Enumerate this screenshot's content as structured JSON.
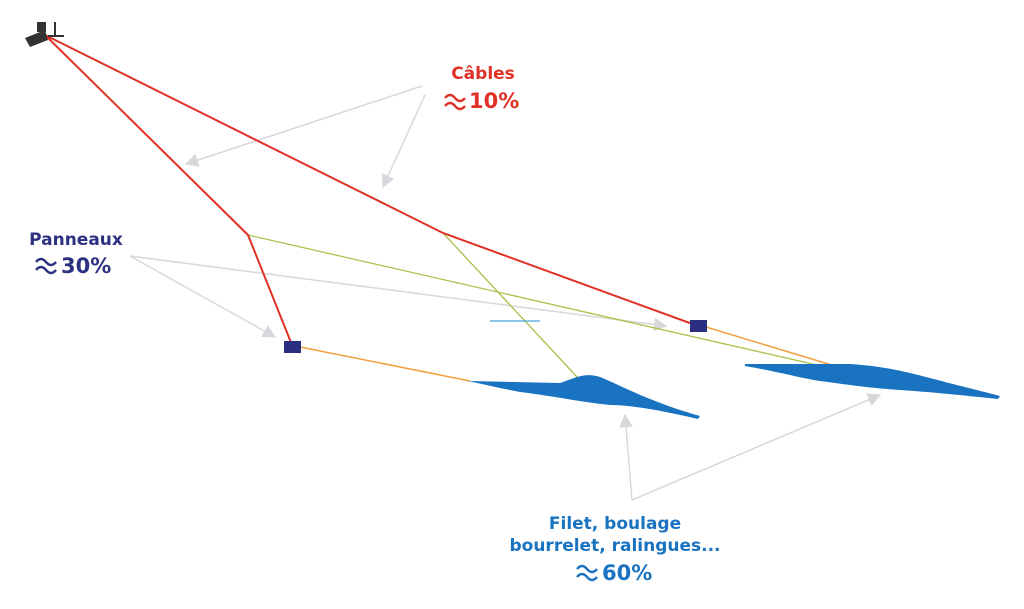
{
  "labels": [
    {
      "title": "Câbles",
      "value": "10%"
    },
    {
      "title": "Panneaux",
      "value": "30%"
    },
    {
      "title_lines": [
        "Filet, boulage",
        "bourrelet, ralingues..."
      ],
      "value": "60%"
    }
  ]
}
